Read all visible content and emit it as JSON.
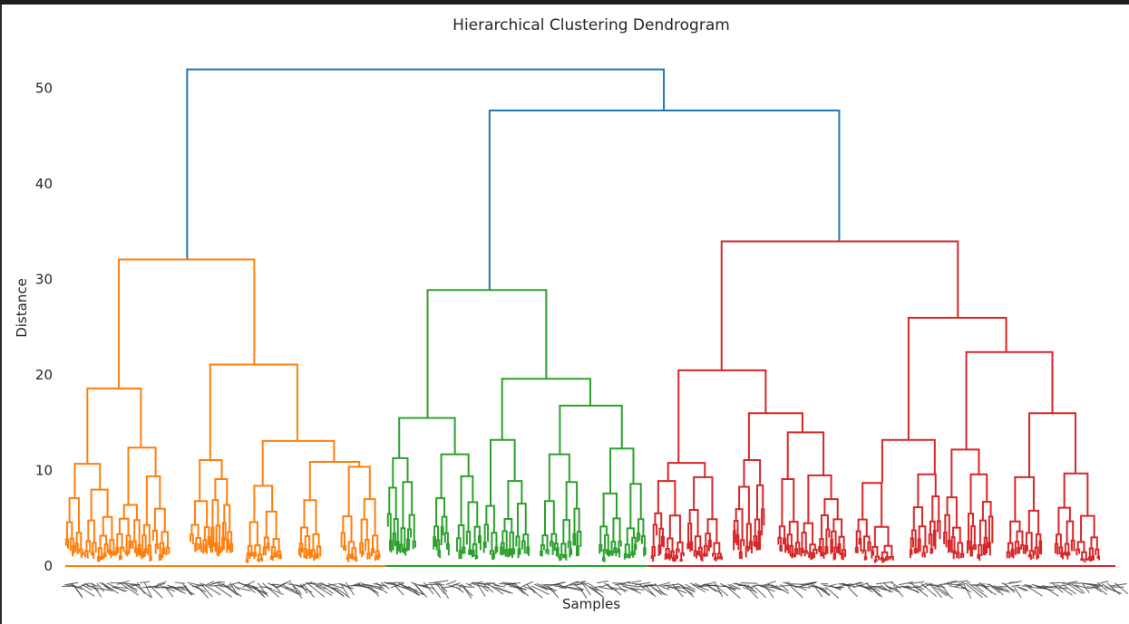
{
  "chart_data": {
    "type": "dendrogram",
    "title": "Hierarchical Clustering Dendrogram",
    "xlabel": "Samples",
    "ylabel": "Distance",
    "ylim": [
      0,
      55
    ],
    "yticks": [
      0,
      10,
      20,
      30,
      40,
      50
    ],
    "grid": false,
    "colors": {
      "root": "#1f77b4",
      "cluster_1": "#ff7f0e",
      "cluster_2": "#2ca02c",
      "cluster_3": "#d62728",
      "leaf_labels": "#3a3a3a"
    },
    "clusters": [
      {
        "color_key": "cluster_1",
        "leaf_span": [
          0,
          0.305
        ],
        "merge_height": 32.1
      },
      {
        "color_key": "cluster_2",
        "leaf_span": [
          0.305,
          0.555
        ],
        "merge_height": 28.9
      },
      {
        "color_key": "cluster_3",
        "leaf_span": [
          0.555,
          1.0
        ],
        "merge_height": 34.0
      }
    ],
    "links": [
      {
        "color": "root",
        "x": [
          0.116,
          0.116,
          0.57,
          0.57
        ],
        "y": [
          32.1,
          52.0,
          52.0,
          47.7
        ]
      },
      {
        "color": "root",
        "x": [
          0.404,
          0.404,
          0.737,
          0.737
        ],
        "y": [
          28.9,
          47.7,
          47.7,
          34.0
        ]
      },
      {
        "color": "cluster_1",
        "x": [
          0.051,
          0.051,
          0.18,
          0.18
        ],
        "y": [
          18.6,
          32.1,
          32.1,
          21.1
        ]
      },
      {
        "color": "cluster_1",
        "x": [
          0.021,
          0.021,
          0.072,
          0.072
        ],
        "y": [
          10.7,
          18.6,
          18.6,
          12.4
        ]
      },
      {
        "color": "cluster_1",
        "x": [
          0.138,
          0.138,
          0.221,
          0.221
        ],
        "y": [
          11.1,
          21.1,
          21.1,
          13.1
        ]
      },
      {
        "color": "cluster_1",
        "x": [
          0.009,
          0.009,
          0.033,
          0.033
        ],
        "y": [
          7.1,
          10.7,
          10.7,
          8.0
        ]
      },
      {
        "color": "cluster_1",
        "x": [
          0.06,
          0.06,
          0.086,
          0.086
        ],
        "y": [
          6.4,
          12.4,
          12.4,
          9.4
        ]
      },
      {
        "color": "cluster_1",
        "x": [
          0.128,
          0.128,
          0.149,
          0.149
        ],
        "y": [
          6.8,
          11.1,
          11.1,
          9.1
        ]
      },
      {
        "color": "cluster_1",
        "x": [
          0.188,
          0.188,
          0.256,
          0.256
        ],
        "y": [
          8.4,
          13.1,
          13.1,
          10.9
        ]
      },
      {
        "color": "cluster_1",
        "x": [
          0.18,
          0.18,
          0.197,
          0.197
        ],
        "y": [
          4.6,
          8.4,
          8.4,
          5.7
        ]
      },
      {
        "color": "cluster_1",
        "x": [
          0.233,
          0.233,
          0.28,
          0.28
        ],
        "y": [
          6.9,
          10.9,
          10.9,
          10.4
        ]
      },
      {
        "color": "cluster_1",
        "x": [
          0.27,
          0.27,
          0.29,
          0.29
        ],
        "y": [
          5.2,
          10.4,
          10.4,
          7.0
        ]
      },
      {
        "color": "cluster_2",
        "x": [
          0.345,
          0.345,
          0.458,
          0.458
        ],
        "y": [
          15.5,
          28.9,
          28.9,
          19.6
        ]
      },
      {
        "color": "cluster_2",
        "x": [
          0.318,
          0.318,
          0.371,
          0.371
        ],
        "y": [
          11.3,
          15.5,
          15.5,
          11.7
        ]
      },
      {
        "color": "cluster_2",
        "x": [
          0.416,
          0.416,
          0.5,
          0.5
        ],
        "y": [
          13.2,
          19.6,
          19.6,
          16.8
        ]
      },
      {
        "color": "cluster_2",
        "x": [
          0.471,
          0.471,
          0.53,
          0.53
        ],
        "y": [
          11.7,
          16.8,
          16.8,
          12.3
        ]
      },
      {
        "color": "cluster_2",
        "x": [
          0.312,
          0.312,
          0.326,
          0.326
        ],
        "y": [
          8.2,
          11.3,
          11.3,
          8.8
        ]
      },
      {
        "color": "cluster_2",
        "x": [
          0.358,
          0.358,
          0.384,
          0.384
        ],
        "y": [
          7.1,
          11.7,
          11.7,
          9.4
        ]
      },
      {
        "color": "cluster_2",
        "x": [
          0.405,
          0.405,
          0.428,
          0.428
        ],
        "y": [
          6.3,
          13.2,
          13.2,
          8.9
        ]
      },
      {
        "color": "cluster_2",
        "x": [
          0.461,
          0.461,
          0.48,
          0.48
        ],
        "y": [
          6.8,
          11.7,
          11.7,
          8.8
        ]
      },
      {
        "color": "cluster_2",
        "x": [
          0.519,
          0.519,
          0.541,
          0.541
        ],
        "y": [
          7.6,
          12.3,
          12.3,
          8.6
        ]
      },
      {
        "color": "cluster_3",
        "x": [
          0.625,
          0.625,
          0.85,
          0.85
        ],
        "y": [
          20.5,
          34.0,
          34.0,
          26.0
        ]
      },
      {
        "color": "cluster_3",
        "x": [
          0.584,
          0.584,
          0.667,
          0.667
        ],
        "y": [
          10.8,
          20.5,
          20.5,
          16.0
        ]
      },
      {
        "color": "cluster_3",
        "x": [
          0.803,
          0.803,
          0.896,
          0.896
        ],
        "y": [
          13.2,
          26.0,
          26.0,
          22.4
        ]
      },
      {
        "color": "cluster_3",
        "x": [
          0.94,
          0.94,
          0.94,
          0.94
        ],
        "y": [
          16.0,
          22.4,
          22.4,
          16.0
        ]
      },
      {
        "color": "cluster_3",
        "x": [
          0.858,
          0.858,
          0.94,
          0.94
        ],
        "y": [
          12.2,
          22.4,
          22.4,
          16.0
        ]
      },
      {
        "color": "cluster_3",
        "x": [
          0.918,
          0.918,
          0.962,
          0.962
        ],
        "y": [
          9.3,
          16.0,
          16.0,
          9.7
        ]
      },
      {
        "color": "cluster_3",
        "x": [
          0.651,
          0.651,
          0.702,
          0.702
        ],
        "y": [
          11.1,
          16.0,
          16.0,
          14.0
        ]
      },
      {
        "color": "cluster_3",
        "x": [
          0.574,
          0.574,
          0.609,
          0.609
        ],
        "y": [
          8.9,
          10.8,
          10.8,
          9.3
        ]
      },
      {
        "color": "cluster_3",
        "x": [
          0.778,
          0.778,
          0.828,
          0.828
        ],
        "y": [
          8.7,
          13.2,
          13.2,
          9.6
        ]
      },
      {
        "color": "cluster_3",
        "x": [
          0.688,
          0.688,
          0.722,
          0.722
        ],
        "y": [
          9.1,
          14.0,
          14.0,
          9.5
        ]
      },
      {
        "color": "cluster_3",
        "x": [
          0.844,
          0.844,
          0.87,
          0.87
        ],
        "y": [
          7.2,
          12.2,
          12.2,
          9.6
        ]
      }
    ]
  }
}
